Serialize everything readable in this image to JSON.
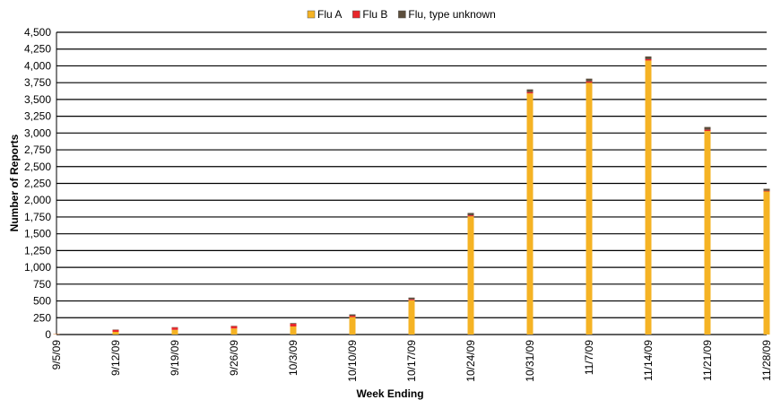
{
  "chart_data": {
    "type": "stacked_bar",
    "x_label": "Week Ending",
    "y_label": "Number of Reports",
    "categories": [
      "9/5/09",
      "9/12/09",
      "9/19/09",
      "9/26/09",
      "10/3/09",
      "10/10/09",
      "10/17/09",
      "10/24/09",
      "10/31/09",
      "11/7/09",
      "11/14/09",
      "11/21/09",
      "11/28/09"
    ],
    "series": [
      {
        "name": "Flu A",
        "color": "#f5b324",
        "values": [
          5,
          40,
          70,
          90,
          120,
          260,
          510,
          1760,
          3590,
          3750,
          4080,
          3030,
          2130
        ]
      },
      {
        "name": "Flu B",
        "color": "#e8262a",
        "values": [
          2,
          30,
          35,
          35,
          40,
          20,
          15,
          15,
          20,
          20,
          20,
          20,
          10
        ]
      },
      {
        "name": "Flu, type unknown",
        "color": "#5c4e3c",
        "values": [
          1,
          5,
          5,
          5,
          10,
          20,
          25,
          35,
          40,
          40,
          40,
          40,
          30
        ]
      }
    ],
    "ylim": [
      0,
      4500
    ],
    "yticks": [
      0,
      250,
      500,
      750,
      {
        "value": 1000,
        "label": "1,000"
      },
      {
        "value": 1250,
        "label": "1,250"
      },
      {
        "value": 1500,
        "label": "1,500"
      },
      {
        "value": 1750,
        "label": "1,750"
      },
      {
        "value": 2000,
        "label": "2,000"
      },
      {
        "value": 2250,
        "label": "2,250"
      },
      {
        "value": 2500,
        "label": "2,500"
      },
      {
        "value": 2750,
        "label": "2,750"
      },
      {
        "value": 3000,
        "label": "3,000"
      },
      {
        "value": 3250,
        "label": "3,250"
      },
      {
        "value": 3500,
        "label": "3,500"
      },
      {
        "value": 3750,
        "label": "3,750"
      },
      {
        "value": 4000,
        "label": "4,000"
      },
      {
        "value": 4250,
        "label": "4,250"
      },
      {
        "value": 4500,
        "label": "4,500"
      }
    ],
    "grid": true,
    "legend": "top"
  }
}
